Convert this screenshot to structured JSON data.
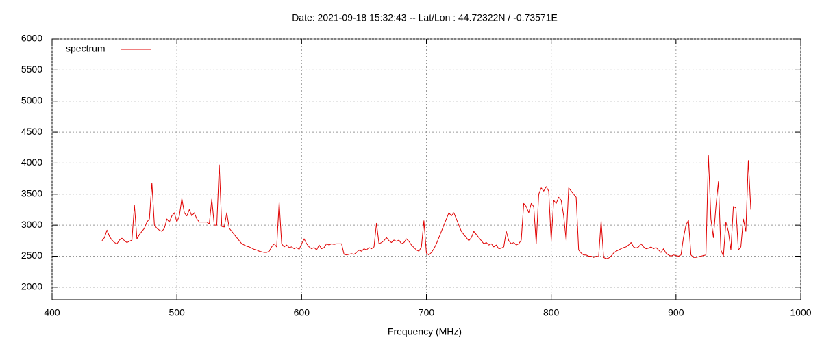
{
  "chart_data": {
    "type": "line",
    "title": "Date: 2021-09-18 15:32:43  --  Lat/Lon : 44.72322N / -0.73571E",
    "xlabel": "Frequency (MHz)",
    "xlim": [
      400,
      1000
    ],
    "xticks": [
      400,
      500,
      600,
      700,
      800,
      900,
      1000
    ],
    "ylim": [
      1800,
      6000
    ],
    "yticks": [
      2000,
      2500,
      3000,
      3500,
      4000,
      4500,
      5000,
      5500,
      6000
    ],
    "grid": true,
    "legend": "upper left",
    "x": [
      440,
      442,
      444,
      446,
      448,
      450,
      452,
      454,
      456,
      458,
      460,
      462,
      464,
      466,
      468,
      470,
      472,
      474,
      476,
      478,
      480,
      482,
      484,
      486,
      488,
      490,
      492,
      494,
      496,
      498,
      500,
      502,
      504,
      506,
      508,
      510,
      512,
      514,
      516,
      518,
      520,
      522,
      524,
      526,
      528,
      530,
      532,
      534,
      536,
      538,
      540,
      542,
      544,
      546,
      548,
      550,
      552,
      554,
      556,
      558,
      560,
      562,
      564,
      566,
      568,
      570,
      572,
      574,
      576,
      578,
      580,
      582,
      584,
      586,
      588,
      590,
      592,
      594,
      596,
      598,
      600,
      602,
      604,
      606,
      608,
      610,
      612,
      614,
      616,
      618,
      620,
      622,
      624,
      626,
      628,
      630,
      632,
      634,
      636,
      638,
      640,
      642,
      644,
      646,
      648,
      650,
      652,
      654,
      656,
      658,
      660,
      662,
      664,
      666,
      668,
      670,
      672,
      674,
      676,
      678,
      680,
      682,
      684,
      686,
      688,
      690,
      692,
      694,
      696,
      698,
      700,
      702,
      704,
      706,
      708,
      710,
      712,
      714,
      716,
      718,
      720,
      722,
      724,
      726,
      728,
      730,
      732,
      734,
      736,
      738,
      740,
      742,
      744,
      746,
      748,
      750,
      752,
      754,
      756,
      758,
      760,
      762,
      764,
      766,
      768,
      770,
      772,
      774,
      776,
      778,
      780,
      782,
      784,
      786,
      788,
      790,
      792,
      794,
      796,
      798,
      800,
      802,
      804,
      806,
      808,
      810,
      812,
      814,
      816,
      818,
      820,
      822,
      824,
      826,
      828,
      830,
      832,
      834,
      836,
      838,
      840,
      842,
      844,
      846,
      848,
      850,
      852,
      854,
      856,
      858,
      860,
      862,
      864,
      866,
      868,
      870,
      872,
      874,
      876,
      878,
      880,
      882,
      884,
      886,
      888,
      890,
      892,
      894,
      896,
      898,
      900,
      902,
      904,
      906,
      908,
      910,
      912,
      914,
      916,
      918,
      920,
      922,
      924,
      926,
      928,
      930,
      932,
      934,
      936,
      938,
      940,
      942,
      944,
      946,
      948,
      950,
      952,
      954,
      956,
      958,
      960
    ],
    "series": [
      {
        "name": "spectrum",
        "color": "#e00000",
        "values": [
          2750,
          2800,
          2920,
          2820,
          2760,
          2720,
          2700,
          2760,
          2790,
          2750,
          2720,
          2740,
          2760,
          3320,
          2780,
          2850,
          2900,
          2950,
          3050,
          3100,
          3680,
          3000,
          2950,
          2920,
          2900,
          2950,
          3100,
          3050,
          3150,
          3200,
          3050,
          3150,
          3430,
          3200,
          3150,
          3250,
          3150,
          3200,
          3100,
          3050,
          3050,
          3050,
          3050,
          3020,
          3420,
          3000,
          3000,
          3970,
          2980,
          2970,
          3200,
          2950,
          2900,
          2850,
          2800,
          2750,
          2700,
          2680,
          2660,
          2650,
          2630,
          2610,
          2600,
          2580,
          2570,
          2560,
          2560,
          2580,
          2650,
          2700,
          2650,
          3370,
          2700,
          2650,
          2680,
          2640,
          2650,
          2620,
          2640,
          2610,
          2700,
          2780,
          2700,
          2650,
          2620,
          2640,
          2600,
          2680,
          2620,
          2640,
          2700,
          2680,
          2700,
          2690,
          2700,
          2700,
          2700,
          2530,
          2520,
          2530,
          2540,
          2530,
          2560,
          2600,
          2580,
          2620,
          2600,
          2640,
          2620,
          2650,
          3030,
          2700,
          2720,
          2750,
          2800,
          2750,
          2720,
          2760,
          2740,
          2760,
          2700,
          2720,
          2780,
          2740,
          2680,
          2640,
          2600,
          2580,
          2650,
          3070,
          2550,
          2520,
          2560,
          2620,
          2700,
          2800,
          2900,
          3000,
          3100,
          3200,
          3150,
          3200,
          3100,
          3000,
          2900,
          2850,
          2800,
          2750,
          2800,
          2900,
          2850,
          2800,
          2750,
          2700,
          2720,
          2680,
          2700,
          2650,
          2680,
          2620,
          2630,
          2650,
          2900,
          2750,
          2700,
          2720,
          2680,
          2700,
          2760,
          3350,
          3300,
          3200,
          3350,
          3300,
          2700,
          3500,
          3600,
          3550,
          3620,
          3550,
          2750,
          3400,
          3350,
          3450,
          3400,
          3150,
          2750,
          3600,
          3550,
          3500,
          3450,
          2600,
          2550,
          2520,
          2520,
          2500,
          2500,
          2480,
          2500,
          2490,
          3070,
          2480,
          2460,
          2470,
          2500,
          2550,
          2580,
          2600,
          2620,
          2640,
          2650,
          2680,
          2720,
          2650,
          2630,
          2650,
          2700,
          2650,
          2620,
          2630,
          2650,
          2620,
          2640,
          2600,
          2560,
          2620,
          2550,
          2520,
          2500,
          2520,
          2510,
          2500,
          2520,
          2800,
          3000,
          3080,
          2520,
          2480,
          2480,
          2490,
          2500,
          2510,
          2520,
          4120,
          3100,
          2800,
          3300,
          3700,
          2600,
          2500,
          3050,
          2900,
          2600,
          3300,
          3280,
          2600,
          2650,
          3100,
          2900,
          4040,
          3250
        ]
      }
    ]
  }
}
